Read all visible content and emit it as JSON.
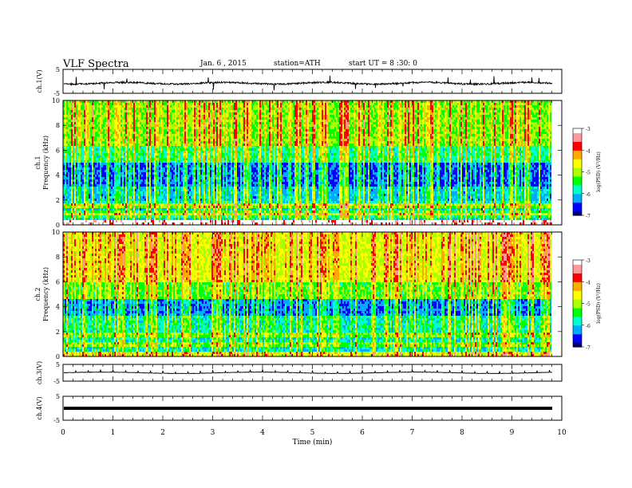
{
  "header": {
    "title": "VLF Spectra",
    "date": "Jan. 6 , 2015",
    "station": "station=ATH",
    "start": "start UT = 8 :30: 0"
  },
  "colors": {
    "colormap": [
      "#000066",
      "#0000ff",
      "#00aaff",
      "#00ffcc",
      "#00ff00",
      "#aaff00",
      "#ffff00",
      "#ffaa00",
      "#ff0000",
      "#ff9999",
      "#ffffff"
    ],
    "trace": "#000000",
    "frame": "#000000"
  },
  "chart_data": [
    {
      "type": "line",
      "name": "ch1-waveform",
      "ylabel": "ch.1(V)",
      "ylim": [
        -5,
        5
      ],
      "yticks": [
        "5",
        "-5"
      ],
      "xlim": [
        0,
        10
      ],
      "description_values": {
        "baseline_V": -0.8,
        "noise_amplitude_V": 1.2
      }
    },
    {
      "type": "heatmap",
      "name": "ch1-spectrogram",
      "ylabel": [
        "ch.1",
        "Frequency (kHz)"
      ],
      "ylim": [
        0,
        10
      ],
      "yticks": [
        "0",
        "2",
        "4",
        "6",
        "8",
        "10"
      ],
      "xlim": [
        0,
        9.8
      ],
      "colorbar": {
        "label": "log(PSD) (V²/Hz)",
        "range": [
          -7,
          -3
        ],
        "ticks": [
          "-3",
          "-4",
          "-5",
          "-6",
          "-7"
        ]
      }
    },
    {
      "type": "heatmap",
      "name": "ch2-spectrogram",
      "ylabel": [
        "ch.2",
        "Frequency (kHz)"
      ],
      "ylim": [
        0,
        10
      ],
      "yticks": [
        "0",
        "2",
        "4",
        "6",
        "8",
        "10"
      ],
      "xlim": [
        0,
        9.8
      ],
      "colorbar": {
        "label": "log(PSD) (V²/Hz)",
        "range": [
          -7,
          -3
        ],
        "ticks": [
          "-3",
          "-4",
          "-5",
          "-6",
          "-7"
        ]
      }
    },
    {
      "type": "line",
      "name": "ch3-waveform",
      "ylabel": "ch.3(V)",
      "ylim": [
        -5,
        5
      ],
      "yticks": [
        "5",
        "-5"
      ],
      "xlim": [
        0,
        10
      ],
      "description_values": {
        "baseline_V": 0.0,
        "spike_period_min": 0.25
      }
    },
    {
      "type": "line",
      "name": "ch4-waveform",
      "ylabel": "ch.4(V)",
      "ylim": [
        -5,
        5
      ],
      "yticks": [
        "5",
        "-5"
      ],
      "xlim": [
        0,
        10
      ],
      "description_values": {
        "baseline_V": 0.0
      }
    }
  ],
  "xaxis": {
    "label": "Time (min)",
    "ticks": [
      "0",
      "1",
      "2",
      "3",
      "4",
      "5",
      "6",
      "7",
      "8",
      "9",
      "10"
    ]
  }
}
